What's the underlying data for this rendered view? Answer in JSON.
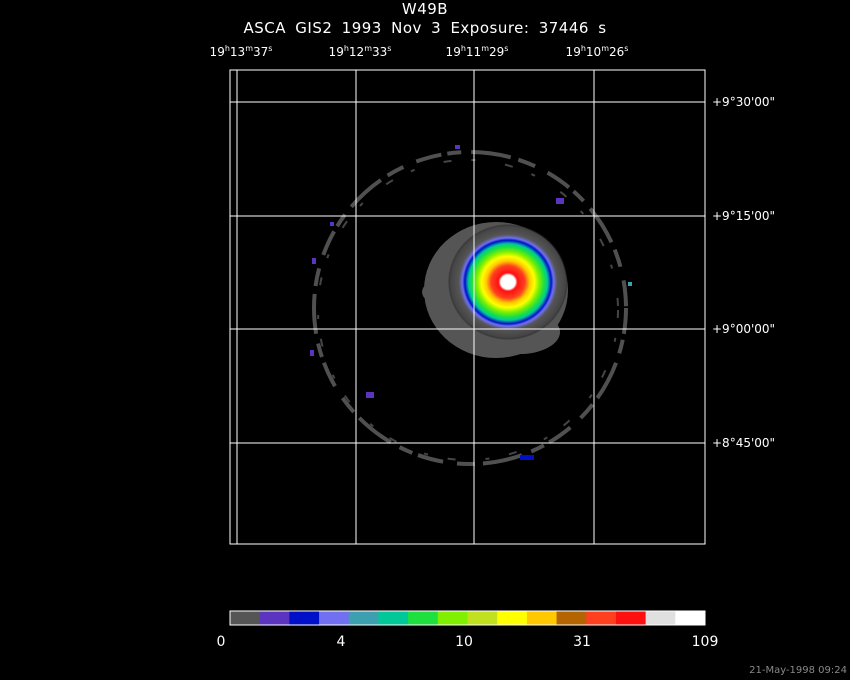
{
  "title": "W49B",
  "subtitle": "ASCA GIS2   1993 Nov  3    Exposure: 37446 s",
  "ra_labels": [
    {
      "h": "19",
      "m": "13",
      "s": "37"
    },
    {
      "h": "19",
      "m": "12",
      "s": "33"
    },
    {
      "h": "19",
      "m": "11",
      "s": "29"
    },
    {
      "h": "19",
      "m": "10",
      "s": "26"
    }
  ],
  "dec_labels": [
    "+9°30'00\"",
    "+9°15'00\"",
    "+9°00'00\"",
    "+8°45'00\""
  ],
  "colorbar": {
    "colors": [
      "#555555",
      "#5b35c0",
      "#0010c8",
      "#7070f0",
      "#3ca0b0",
      "#00c898",
      "#20e040",
      "#80f000",
      "#c0e020",
      "#ffff00",
      "#ffc800",
      "#b46400",
      "#ff4020",
      "#ff1010",
      "#e0e0e0",
      "#ffffff"
    ],
    "tick_labels": [
      "0",
      "4",
      "10",
      "31",
      "109"
    ]
  },
  "timestamp": "21-May-1998 09:24"
}
